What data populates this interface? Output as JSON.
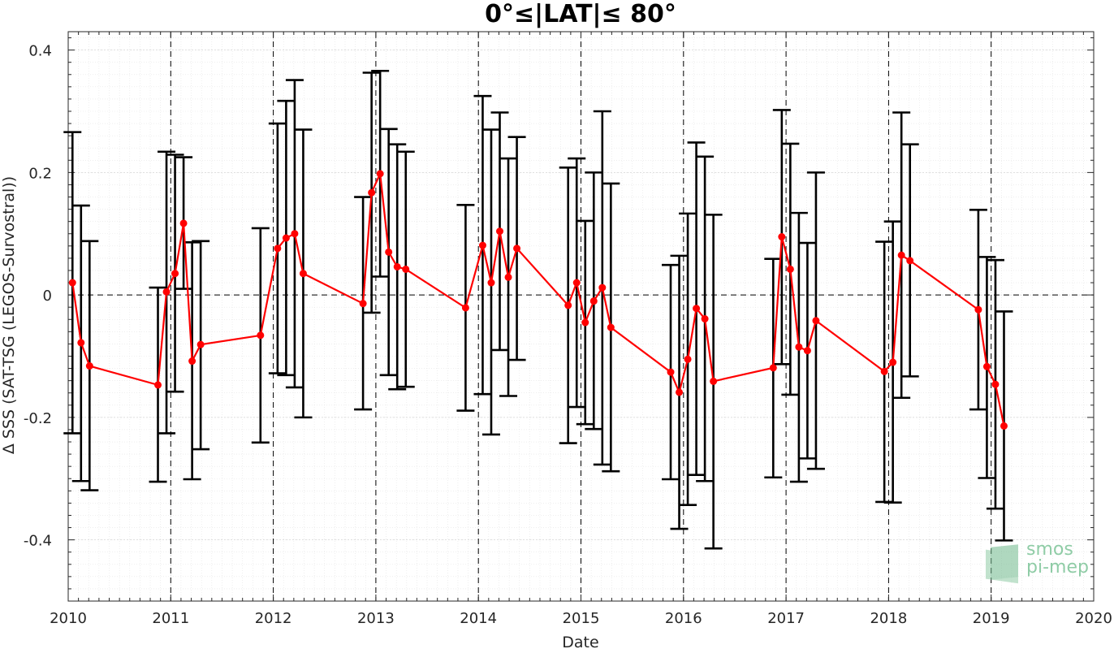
{
  "chart_data": {
    "type": "line",
    "title": "0°≤|LAT|≤ 80°",
    "xlabel": "Date",
    "ylabel": "Δ SSS (SAT-TSG (LEGOS-Survostral))",
    "xlim": [
      2010,
      2020
    ],
    "ylim": [
      -0.5,
      0.43
    ],
    "x_ticks": [
      "2010",
      "2011",
      "2012",
      "2013",
      "2014",
      "2015",
      "2016",
      "2017",
      "2018",
      "2019",
      "2020"
    ],
    "y_ticks": [
      "0.4",
      "0.2",
      "0",
      "-0.2",
      "-0.4"
    ],
    "grid": true,
    "minor_grid": true,
    "reference_lines": {
      "y": 0,
      "x_years": [
        2011,
        2012,
        2013,
        2014,
        2015,
        2016,
        2017,
        2018,
        2019
      ]
    },
    "series": [
      {
        "color": "#ff0000",
        "errorbar_color": "#000000",
        "points": [
          {
            "x": "2010-01",
            "y": 0.02,
            "low": -0.226,
            "high": 0.266
          },
          {
            "x": "2010-02",
            "y": -0.078,
            "low": -0.304,
            "high": 0.146
          },
          {
            "x": "2010-03",
            "y": -0.116,
            "low": -0.319,
            "high": 0.088
          },
          {
            "x": "2010-11",
            "y": -0.147,
            "low": -0.305,
            "high": 0.012
          },
          {
            "x": "2010-12",
            "y": 0.005,
            "low": -0.226,
            "high": 0.234
          },
          {
            "x": "2011-01",
            "y": 0.035,
            "low": -0.158,
            "high": 0.229
          },
          {
            "x": "2011-02",
            "y": 0.117,
            "low": 0.01,
            "high": 0.225
          },
          {
            "x": "2011-03",
            "y": -0.108,
            "low": -0.301,
            "high": 0.086
          },
          {
            "x": "2011-04",
            "y": -0.081,
            "low": -0.252,
            "high": 0.088
          },
          {
            "x": "2011-11",
            "y": -0.066,
            "low": -0.241,
            "high": 0.109
          },
          {
            "x": "2012-01",
            "y": 0.076,
            "low": -0.128,
            "high": 0.28
          },
          {
            "x": "2012-02",
            "y": 0.093,
            "low": -0.131,
            "high": 0.317
          },
          {
            "x": "2012-03",
            "y": 0.1,
            "low": -0.151,
            "high": 0.351
          },
          {
            "x": "2012-04",
            "y": 0.035,
            "low": -0.2,
            "high": 0.27
          },
          {
            "x": "2012-11",
            "y": -0.014,
            "low": -0.187,
            "high": 0.16
          },
          {
            "x": "2012-12",
            "y": 0.167,
            "low": -0.029,
            "high": 0.363
          },
          {
            "x": "2013-01",
            "y": 0.198,
            "low": 0.03,
            "high": 0.366
          },
          {
            "x": "2013-02",
            "y": 0.07,
            "low": -0.131,
            "high": 0.271
          },
          {
            "x": "2013-03",
            "y": 0.046,
            "low": -0.154,
            "high": 0.246
          },
          {
            "x": "2013-04",
            "y": 0.042,
            "low": -0.15,
            "high": 0.234
          },
          {
            "x": "2013-11",
            "y": -0.021,
            "low": -0.189,
            "high": 0.147
          },
          {
            "x": "2014-01",
            "y": 0.081,
            "low": -0.162,
            "high": 0.325
          },
          {
            "x": "2014-02",
            "y": 0.02,
            "low": -0.228,
            "high": 0.27
          },
          {
            "x": "2014-03",
            "y": 0.104,
            "low": -0.09,
            "high": 0.298
          },
          {
            "x": "2014-04",
            "y": 0.029,
            "low": -0.165,
            "high": 0.223
          },
          {
            "x": "2014-05",
            "y": 0.076,
            "low": -0.106,
            "high": 0.258
          },
          {
            "x": "2014-11",
            "y": -0.017,
            "low": -0.242,
            "high": 0.208
          },
          {
            "x": "2014-12",
            "y": 0.02,
            "low": -0.183,
            "high": 0.223
          },
          {
            "x": "2015-01",
            "y": -0.045,
            "low": -0.211,
            "high": 0.121
          },
          {
            "x": "2015-02",
            "y": -0.01,
            "low": -0.219,
            "high": 0.2
          },
          {
            "x": "2015-03",
            "y": 0.012,
            "low": -0.277,
            "high": 0.3
          },
          {
            "x": "2015-04",
            "y": -0.053,
            "low": -0.288,
            "high": 0.182
          },
          {
            "x": "2015-11",
            "y": -0.126,
            "low": -0.301,
            "high": 0.049
          },
          {
            "x": "2015-12",
            "y": -0.159,
            "low": -0.382,
            "high": 0.064
          },
          {
            "x": "2016-01",
            "y": -0.105,
            "low": -0.343,
            "high": 0.133
          },
          {
            "x": "2016-02",
            "y": -0.022,
            "low": -0.294,
            "high": 0.249
          },
          {
            "x": "2016-03",
            "y": -0.039,
            "low": -0.304,
            "high": 0.226
          },
          {
            "x": "2016-04",
            "y": -0.141,
            "low": -0.414,
            "high": 0.131
          },
          {
            "x": "2016-11",
            "y": -0.119,
            "low": -0.298,
            "high": 0.059
          },
          {
            "x": "2016-12",
            "y": 0.095,
            "low": -0.113,
            "high": 0.302
          },
          {
            "x": "2017-01",
            "y": 0.042,
            "low": -0.163,
            "high": 0.247
          },
          {
            "x": "2017-02",
            "y": -0.085,
            "low": -0.305,
            "high": 0.134
          },
          {
            "x": "2017-03",
            "y": -0.091,
            "low": -0.267,
            "high": 0.085
          },
          {
            "x": "2017-04",
            "y": -0.042,
            "low": -0.284,
            "high": 0.2
          },
          {
            "x": "2017-12",
            "y": -0.125,
            "low": -0.338,
            "high": 0.087
          },
          {
            "x": "2018-01",
            "y": -0.11,
            "low": -0.339,
            "high": 0.12
          },
          {
            "x": "2018-02",
            "y": 0.065,
            "low": -0.168,
            "high": 0.298
          },
          {
            "x": "2018-03",
            "y": 0.056,
            "low": -0.133,
            "high": 0.246
          },
          {
            "x": "2018-11",
            "y": -0.024,
            "low": -0.187,
            "high": 0.139
          },
          {
            "x": "2018-12",
            "y": -0.117,
            "low": -0.299,
            "high": 0.062
          },
          {
            "x": "2019-01",
            "y": -0.146,
            "low": -0.349,
            "high": 0.057
          },
          {
            "x": "2019-02",
            "y": -0.214,
            "low": -0.401,
            "high": -0.027
          }
        ]
      }
    ]
  },
  "watermark": {
    "line1": "smos",
    "line2": "pi-mep",
    "color": "#8fcca6"
  }
}
